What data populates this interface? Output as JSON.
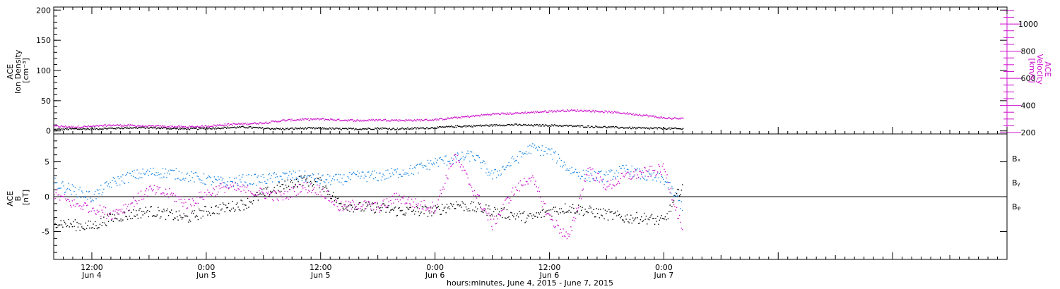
{
  "colors": {
    "black": "#000000",
    "magenta": "#cc10cc",
    "blue": "#1e88e5"
  },
  "xaxis": {
    "title": "hours:minutes,  June  4, 2015 - June  7, 2015",
    "range_hours": [
      8.0,
      108.0
    ],
    "ticks": [
      {
        "h": 12,
        "time": "12:00",
        "day": "Jun 4"
      },
      {
        "h": 24,
        "time": "0:00",
        "day": "Jun 5"
      },
      {
        "h": 36,
        "time": "12:00",
        "day": "Jun 5"
      },
      {
        "h": 48,
        "time": "0:00",
        "day": "Jun 6"
      },
      {
        "h": 60,
        "time": "12:00",
        "day": "Jun 6"
      },
      {
        "h": 72,
        "time": "0:00",
        "day": "Jun 7"
      }
    ]
  },
  "top_panel": {
    "left_label_lines": [
      "ACE",
      "Ion Density",
      "[cm⁻³]"
    ],
    "right_label_lines": [
      "ACE",
      "Velocity",
      "[km/s]"
    ],
    "left_range": [
      -5,
      205
    ],
    "left_ticks": [
      0,
      50,
      100,
      150,
      200
    ],
    "right_range": [
      190,
      1125
    ],
    "right_ticks": [
      200,
      400,
      600,
      800,
      1000
    ]
  },
  "bottom_panel": {
    "label_lines": [
      "ACE",
      "B",
      "[nT]"
    ],
    "range": [
      -9,
      9
    ],
    "ticks": [
      -5,
      0,
      5
    ],
    "legend": [
      {
        "key": "Bx",
        "label": "Bₓ",
        "color": "#000000"
      },
      {
        "key": "By",
        "label": "Bᵧ",
        "color": "#1e88e5"
      },
      {
        "key": "Bz",
        "label": "Bᵩ",
        "color": "#cc10cc"
      }
    ]
  },
  "chart_data": [
    {
      "type": "scatter",
      "title": "",
      "xlabel": "hours:minutes,  June  4, 2015 - June  7, 2015",
      "ylabel": "ACE Ion Density [cm⁻³] / ACE Velocity [km/s]",
      "x_unit": "hours since 2015-06-04 00:00 UT",
      "series": [
        {
          "name": "Ion Density",
          "axis": "left",
          "color": "#000000",
          "x": [
            8,
            10,
            12,
            14,
            16,
            18,
            20,
            22,
            24,
            26,
            28,
            30,
            32,
            34,
            36,
            38,
            40,
            42,
            44,
            46,
            48,
            50,
            52,
            54,
            56,
            58,
            60,
            62,
            64,
            66,
            68,
            70,
            72,
            74
          ],
          "y": [
            3,
            4,
            4,
            5,
            6,
            6,
            5,
            4,
            5,
            6,
            7,
            5,
            4,
            5,
            5,
            4,
            4,
            5,
            4,
            5,
            6,
            8,
            9,
            10,
            11,
            10,
            10,
            9,
            8,
            7,
            6,
            5,
            5,
            4
          ]
        },
        {
          "name": "Velocity",
          "axis": "right",
          "color": "#cc10cc",
          "x": [
            8,
            10,
            12,
            14,
            16,
            18,
            20,
            22,
            24,
            26,
            28,
            30,
            32,
            34,
            36,
            38,
            40,
            42,
            44,
            46,
            48,
            50,
            52,
            54,
            56,
            58,
            60,
            62,
            64,
            66,
            68,
            70,
            72,
            74
          ],
          "y": [
            250,
            245,
            248,
            258,
            255,
            250,
            248,
            244,
            250,
            262,
            268,
            275,
            292,
            300,
            302,
            296,
            292,
            296,
            294,
            294,
            298,
            312,
            325,
            340,
            344,
            352,
            360,
            366,
            364,
            356,
            345,
            330,
            310,
            305
          ]
        }
      ]
    },
    {
      "type": "scatter",
      "title": "",
      "xlabel": "hours:minutes,  June  4, 2015 - June  7, 2015",
      "ylabel": "ACE B [nT]",
      "x_unit": "hours since 2015-06-04 00:00 UT",
      "ylim": [
        -9,
        9
      ],
      "series": [
        {
          "name": "Bx",
          "color": "#000000",
          "x": [
            8,
            10,
            12,
            14,
            16,
            18,
            20,
            22,
            24,
            26,
            28,
            30,
            32,
            34,
            36,
            38,
            40,
            42,
            44,
            46,
            48,
            50,
            52,
            54,
            56,
            58,
            60,
            62,
            64,
            66,
            68,
            70,
            72,
            74
          ],
          "y": [
            -3.5,
            -4.0,
            -4.2,
            -3.0,
            -2.5,
            -2.0,
            -2.5,
            -3.0,
            -2.0,
            -1.5,
            -1.0,
            0.5,
            1.5,
            2.5,
            2.0,
            -1.0,
            -1.5,
            -1.5,
            -2.0,
            -2.0,
            -2.0,
            -1.0,
            -1.5,
            -2.0,
            -2.5,
            -3.0,
            -2.0,
            -1.5,
            -2.0,
            -2.5,
            -3.0,
            -3.0,
            -3.5,
            2.0
          ]
        },
        {
          "name": "By",
          "color": "#1e88e5",
          "x": [
            8,
            10,
            12,
            14,
            16,
            18,
            20,
            22,
            24,
            26,
            28,
            30,
            32,
            34,
            36,
            38,
            40,
            42,
            44,
            46,
            48,
            50,
            52,
            54,
            56,
            58,
            60,
            62,
            64,
            66,
            68,
            70,
            72,
            74
          ],
          "y": [
            2.0,
            1.0,
            0.0,
            2.0,
            3.0,
            3.5,
            3.5,
            3.0,
            2.5,
            2.0,
            2.5,
            2.5,
            3.0,
            3.0,
            2.5,
            2.5,
            3.0,
            3.0,
            3.5,
            4.0,
            5.0,
            5.5,
            6.0,
            3.0,
            5.0,
            7.0,
            6.5,
            4.0,
            3.0,
            3.0,
            4.0,
            3.0,
            2.5,
            -1.5
          ]
        },
        {
          "name": "Bz",
          "color": "#cc10cc",
          "x": [
            8,
            10,
            12,
            14,
            16,
            18,
            20,
            22,
            24,
            26,
            28,
            30,
            32,
            34,
            36,
            38,
            40,
            42,
            44,
            46,
            48,
            50,
            52,
            54,
            56,
            58,
            60,
            62,
            64,
            66,
            68,
            70,
            72,
            74
          ],
          "y": [
            0.5,
            -1.0,
            -1.5,
            -2.5,
            -1.0,
            1.0,
            0.5,
            -1.0,
            0.5,
            1.5,
            1.0,
            0.5,
            0.0,
            1.5,
            1.0,
            -1.5,
            -1.0,
            -1.5,
            0.0,
            -1.0,
            -1.5,
            6.0,
            1.0,
            -4.0,
            0.5,
            3.0,
            -3.0,
            -6.0,
            4.0,
            1.5,
            3.0,
            3.5,
            4.0,
            -5.0
          ]
        }
      ]
    }
  ]
}
